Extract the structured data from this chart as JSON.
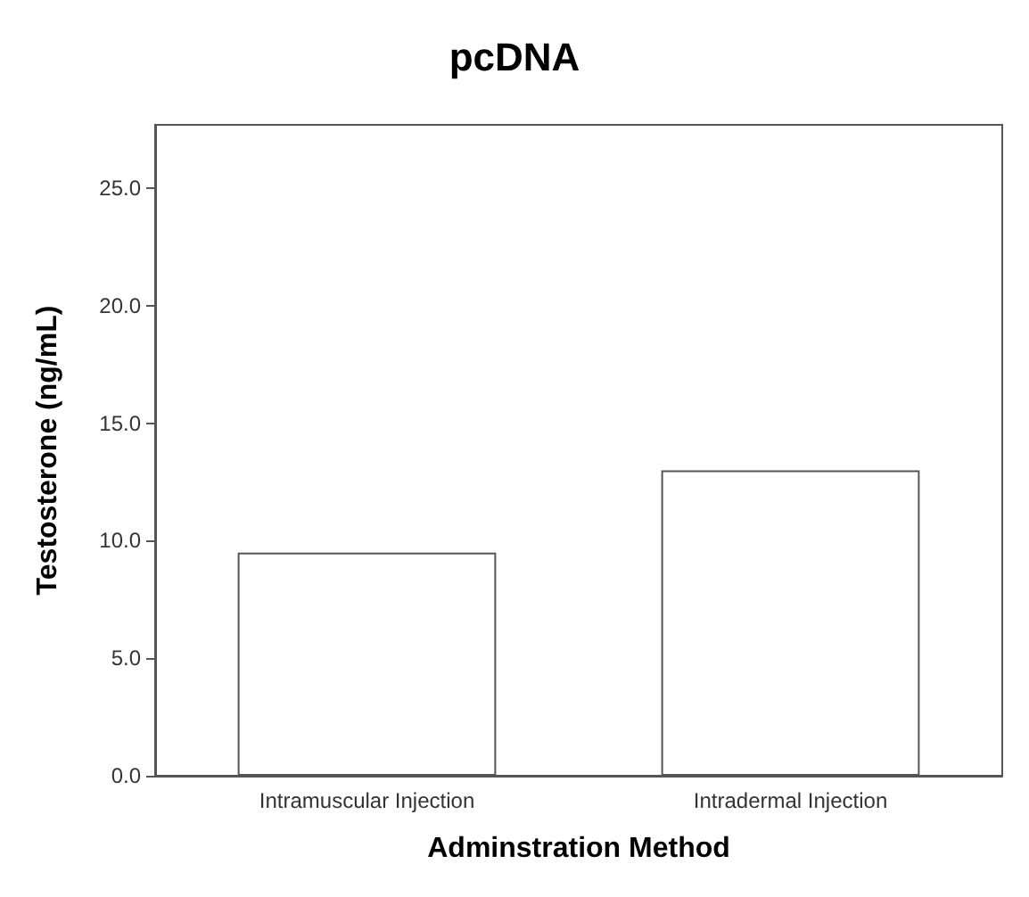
{
  "chart_data": {
    "type": "bar",
    "title": "pcDNA",
    "xlabel": "Adminstration Method",
    "ylabel": "Testosterone (ng/mL)",
    "categories": [
      "Intramuscular Injection",
      "Intradermal Injection"
    ],
    "values": [
      9.5,
      13.0
    ],
    "color": "#ffffff",
    "ylim": [
      0,
      27.7
    ],
    "yticks": [
      {
        "value": 0,
        "label": "0.0"
      },
      {
        "value": 5,
        "label": "5.0"
      },
      {
        "value": 10,
        "label": "10.0"
      },
      {
        "value": 15,
        "label": "15.0"
      },
      {
        "value": 20,
        "label": "20.0"
      },
      {
        "value": 25,
        "label": "25.0"
      }
    ],
    "grid": false
  }
}
